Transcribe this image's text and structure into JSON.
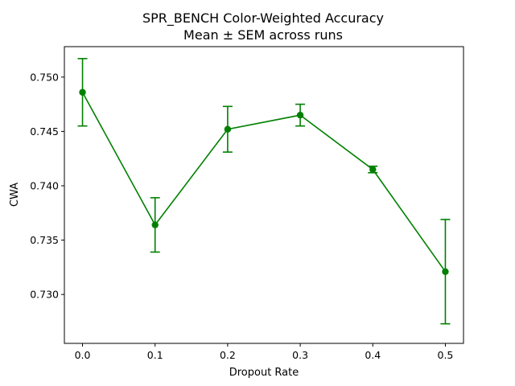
{
  "chart_data": {
    "type": "line",
    "title": "SPR_BENCH Color-Weighted Accuracy",
    "subtitle": "Mean ± SEM across runs",
    "xlabel": "Dropout Rate",
    "ylabel": "CWA",
    "x": [
      0.0,
      0.1,
      0.2,
      0.3,
      0.4,
      0.5
    ],
    "x_tick_labels": [
      "0.0",
      "0.1",
      "0.2",
      "0.3",
      "0.4",
      "0.5"
    ],
    "y_ticks": [
      0.73,
      0.735,
      0.74,
      0.745,
      0.75
    ],
    "y_tick_labels": [
      "0.730",
      "0.735",
      "0.740",
      "0.745",
      "0.750"
    ],
    "xlim": [
      -0.025,
      0.525
    ],
    "ylim": [
      0.7255,
      0.7528
    ],
    "grid": false,
    "series": [
      {
        "values": [
          0.7486,
          0.7364,
          0.7452,
          0.7465,
          0.7415,
          0.7321
        ],
        "error": [
          0.0031,
          0.0025,
          0.0021,
          0.001,
          0.0003,
          0.0048
        ],
        "color": "#008000",
        "marker": "circle"
      }
    ]
  }
}
